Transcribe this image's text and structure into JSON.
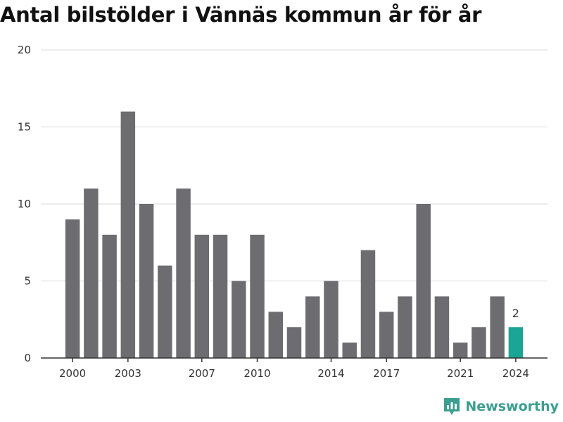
{
  "title": "Antal bilstölder i Vännäs kommun år för år",
  "brand": {
    "name": "Newsworthy",
    "color": "#3b9e8f"
  },
  "colors": {
    "bar": "#6d6c71",
    "highlight": "#1aa595",
    "grid": "#d9d9d9",
    "axis": "#333333"
  },
  "chart_data": {
    "type": "bar",
    "title": "Antal bilstölder i Vännäs kommun år för år",
    "xlabel": "",
    "ylabel": "",
    "categories": [
      "2000",
      "2001",
      "2002",
      "2003",
      "2004",
      "2005",
      "2006",
      "2007",
      "2008",
      "2009",
      "2010",
      "2011",
      "2012",
      "2013",
      "2014",
      "2015",
      "2016",
      "2017",
      "2018",
      "2019",
      "2020",
      "2021",
      "2022",
      "2023",
      "2024"
    ],
    "values": [
      9,
      11,
      8,
      16,
      10,
      6,
      11,
      8,
      8,
      5,
      8,
      3,
      2,
      4,
      5,
      1,
      7,
      3,
      4,
      10,
      4,
      1,
      2,
      4,
      2
    ],
    "ylim": [
      0,
      20
    ],
    "yticks": [
      "0",
      "5",
      "10",
      "15",
      "20"
    ],
    "xtick_labels": [
      "2000",
      "2003",
      "2007",
      "2010",
      "2014",
      "2017",
      "2021",
      "2024"
    ],
    "highlight": {
      "category": "2024",
      "label": "2"
    },
    "grid": true,
    "legend": "none"
  }
}
